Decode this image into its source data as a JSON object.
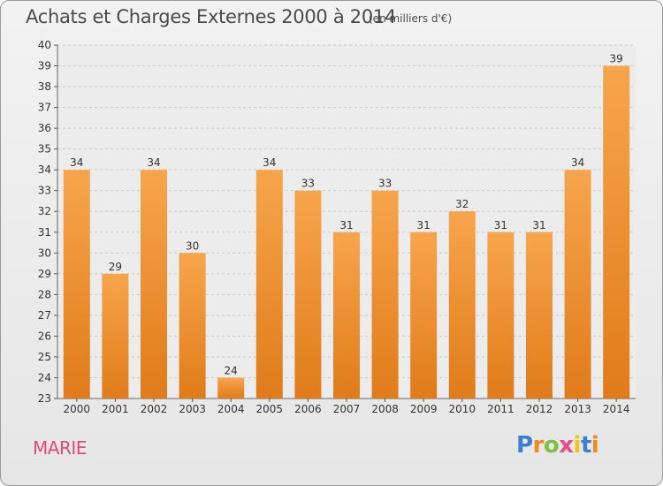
{
  "chart_data": {
    "type": "bar",
    "title": "Achats et Charges Externes 2000 à 2014",
    "subtitle": "(en milliers d'€)",
    "categories": [
      "2000",
      "2001",
      "2002",
      "2003",
      "2004",
      "2005",
      "2006",
      "2007",
      "2008",
      "2009",
      "2010",
      "2011",
      "2012",
      "2013",
      "2014"
    ],
    "values": [
      34,
      29,
      34,
      30,
      24,
      34,
      33,
      31,
      33,
      31,
      32,
      31,
      31,
      34,
      39
    ],
    "ylim": [
      23,
      40
    ],
    "yticks": [
      23,
      24,
      25,
      26,
      27,
      28,
      29,
      30,
      31,
      32,
      33,
      34,
      35,
      36,
      37,
      38,
      39,
      40
    ],
    "grid": true,
    "bar_color_light": "#f7a54c",
    "bar_color_dark": "#e07b1a"
  },
  "location": "MARIE",
  "logo": {
    "letters": [
      "P",
      "r",
      "o",
      "x",
      "i",
      "t",
      "i"
    ],
    "colors": [
      "#3b7fd4",
      "#f08a1c",
      "#7cc142",
      "#e84b8a",
      "#f0c419",
      "#3b7fd4",
      "#f08a1c"
    ]
  }
}
